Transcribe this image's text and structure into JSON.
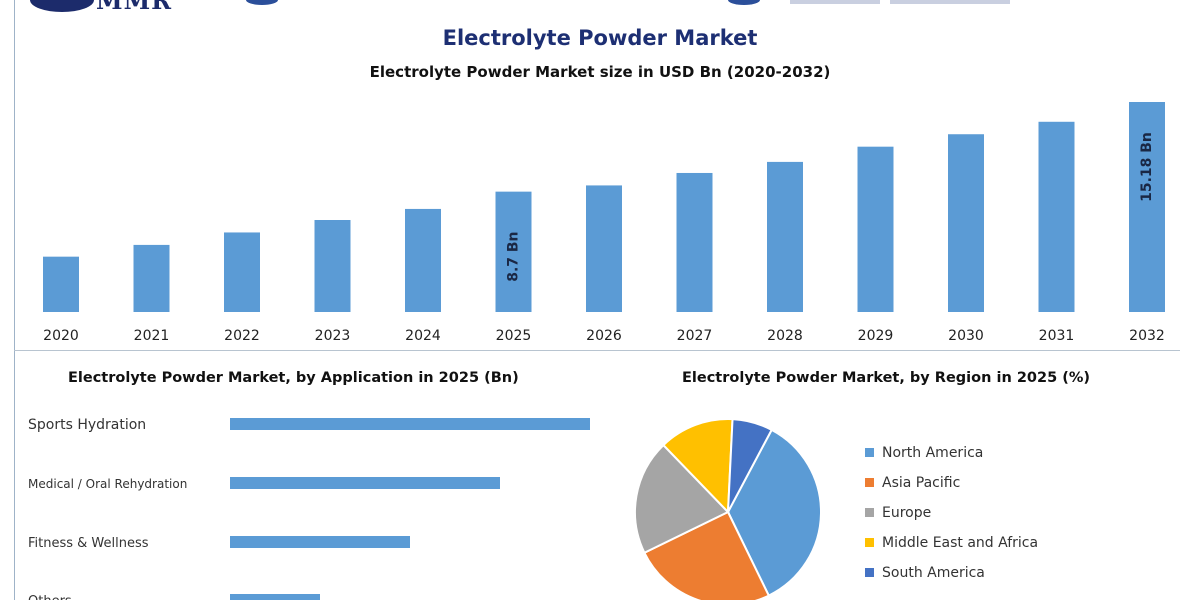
{
  "header": {
    "logo_text": "MMR"
  },
  "chart_data": [
    {
      "type": "bar",
      "title": "Electrolyte Powder Market",
      "subtitle": "Electrolyte Powder Market size in USD Bn (2020-2032)",
      "categories": [
        "2020",
        "2021",
        "2022",
        "2023",
        "2024",
        "2025",
        "2026",
        "2027",
        "2028",
        "2029",
        "2030",
        "2031",
        "2032"
      ],
      "values": [
        4.0,
        4.85,
        5.75,
        6.65,
        7.45,
        8.7,
        9.15,
        10.05,
        10.85,
        11.95,
        12.85,
        13.75,
        15.18
      ],
      "data_labels": {
        "5": "8.7 Bn",
        "12": "15.18 Bn"
      },
      "ylim": [
        0,
        15.18
      ],
      "color": "#5b9bd5",
      "grid": false
    },
    {
      "type": "bar",
      "orientation": "horizontal",
      "title": "Electrolyte Powder Market, by Application in 2025 (Bn)",
      "categories": [
        "Sports Hydration",
        "Medical / Oral Rehydration",
        "Fitness & Wellness",
        "Others"
      ],
      "values": [
        4.0,
        3.0,
        2.0,
        1.0
      ],
      "xlim": [
        0,
        4.0
      ],
      "color": "#5b9bd5"
    },
    {
      "type": "pie",
      "title": "Electrolyte Powder Market, by Region in 2025 (%)",
      "labels": [
        "North America",
        "Asia Pacific",
        "Europe",
        "Middle East and Africa",
        "South America"
      ],
      "values": [
        35,
        25,
        20,
        13,
        7
      ],
      "colors": [
        "#5b9bd5",
        "#ed7d31",
        "#a5a5a5",
        "#ffc000",
        "#4472c4"
      ],
      "legend": "right"
    }
  ]
}
